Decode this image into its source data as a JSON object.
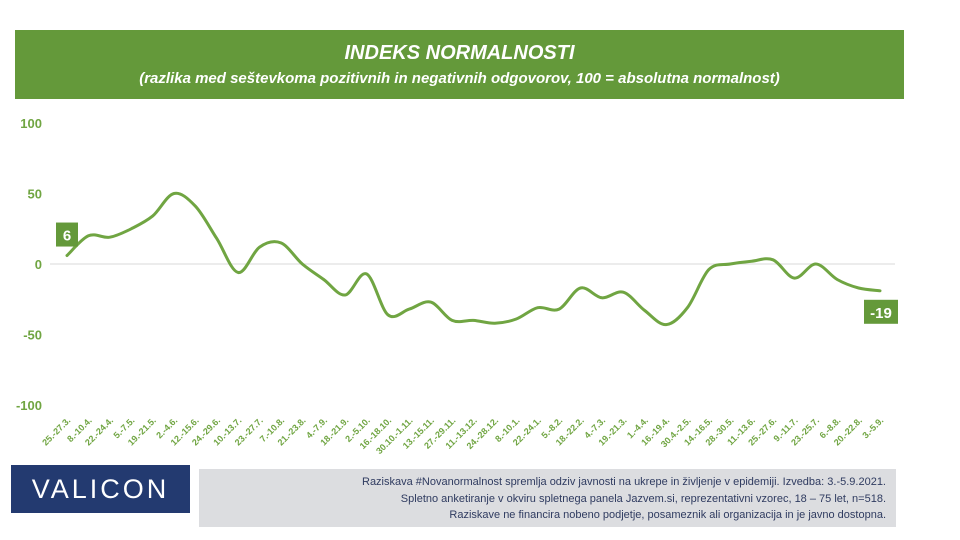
{
  "header": {
    "title": "INDEKS NORMALNOSTI",
    "subtitle": "(razlika med seštevkoma pozitivnih in negativnih odgovorov, 100 = absolutna normalnost)"
  },
  "chart_data": {
    "type": "line",
    "title": "INDEKS NORMALNOSTI",
    "subtitle": "(razlika med seštevkoma pozitivnih in negativnih odgovorov, 100 = absolutna normalnost)",
    "categories": [
      "25.-27.3.",
      "8.-10.4.",
      "22.-24.4.",
      "5.-7.5.",
      "19.-21.5.",
      "2.-4.6.",
      "12.-15.6.",
      "24.-29.6.",
      "10.-13.7.",
      "23.-27.7.",
      "7.-10.8.",
      "21.-23.8.",
      "4.-7.9.",
      "18.-21.9.",
      "2.-5.10.",
      "16.-18.10.",
      "30.10.-1.11.",
      "13.-15.11.",
      "27.-29.11.",
      "11.-13.12.",
      "24.-28.12.",
      "8.-10.1.",
      "22.-24.1.",
      "5.-8.2.",
      "18.-22.2.",
      "4.-7.3.",
      "19.-21.3.",
      "1.-4.4.",
      "16.-19.4.",
      "30.4.-2.5.",
      "14.-16.5.",
      "28.-30.5.",
      "11.-13.6.",
      "25.-27.6.",
      "9.-11.7.",
      "23.-25.7.",
      "6.-8.8.",
      "20.-22.8.",
      "3.-5.9."
    ],
    "series": [
      {
        "name": "",
        "values": [
          6,
          20,
          19,
          25,
          34,
          50,
          41,
          18,
          -6,
          12,
          15,
          0,
          -11,
          -22,
          -7,
          -36,
          -32,
          -27,
          -40,
          -40,
          -42,
          -39,
          -31,
          -32,
          -17,
          -24,
          -20,
          -33,
          -43,
          -31,
          -4,
          0,
          2,
          3,
          -10,
          0,
          -11,
          -17,
          -19
        ]
      }
    ],
    "ylim": [
      -100,
      100
    ],
    "yticks": [
      100,
      50,
      0,
      -50,
      -100
    ],
    "first_label": "6",
    "last_label": "-19",
    "grid": false,
    "zero_line": true,
    "colors": {
      "line": "#70a542",
      "axis": "#70a542",
      "label_bg": "#64993a",
      "label_text": "#ffffff"
    }
  },
  "logo": {
    "text": "VALICON"
  },
  "footer": {
    "lines": [
      "Raziskava #Novanormalnost spremlja odziv javnosti na ukrepe in življenje v epidemiji. Izvedba: 3.-5.9.2021.",
      "Spletno anketiranje v okviru spletnega panela Jazvem.si, reprezentativni vzorec, 18 – 75 let, n=518.",
      "Raziskave ne financira nobeno podjetje, posameznik ali organizacija in je javno dostopna."
    ]
  }
}
